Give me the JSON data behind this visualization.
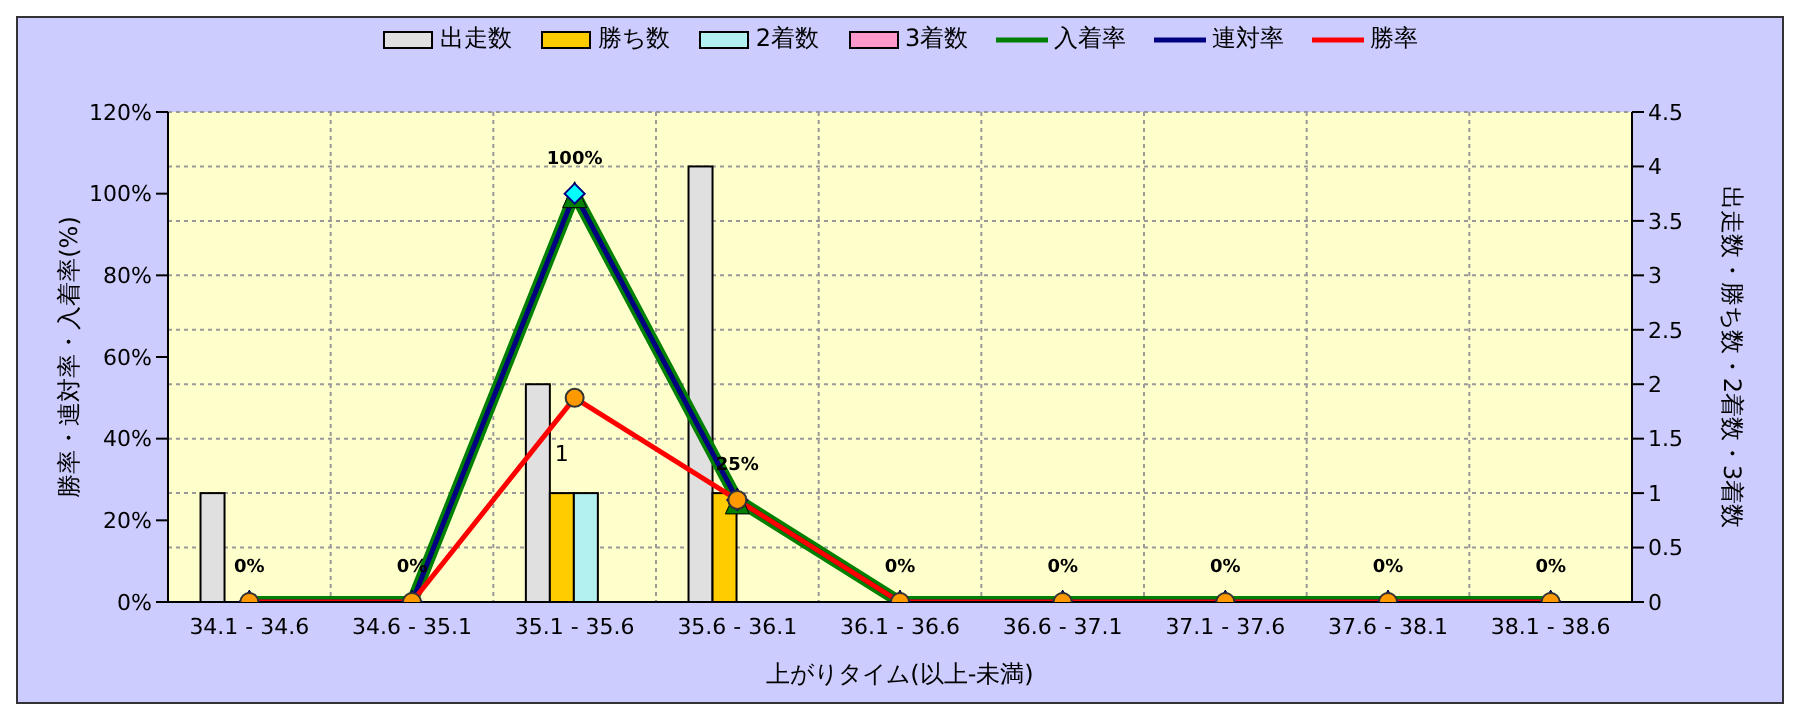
{
  "chart_data": {
    "type": "bar",
    "xlabel": "上がりタイム(以上-未満)",
    "ylabel": "勝率・連対率・入着率(%)",
    "y2label": "出走数・勝ち数・2着数・3着数",
    "categories": [
      "34.1 - 34.6",
      "34.6 - 35.1",
      "35.1 - 35.6",
      "35.6 - 36.1",
      "36.1 - 36.6",
      "36.6 - 37.1",
      "37.1 - 37.6",
      "37.6 - 38.1",
      "38.1 - 38.6"
    ],
    "series": [
      {
        "name": "出走数",
        "axis": "y2",
        "color": "#e0e0e0",
        "values": [
          1,
          0,
          2,
          4,
          0,
          0,
          0,
          0,
          0
        ]
      },
      {
        "name": "勝ち数",
        "axis": "y2",
        "color": "#ffcc00",
        "values": [
          0,
          0,
          1,
          1,
          0,
          0,
          0,
          0,
          0
        ],
        "value_labels": [
          null,
          null,
          "1",
          null,
          null,
          null,
          null,
          null,
          null
        ]
      },
      {
        "name": "2着数",
        "axis": "y2",
        "color": "#b3f0f0",
        "values": [
          0,
          0,
          1,
          0,
          0,
          0,
          0,
          0,
          0
        ]
      },
      {
        "name": "3着数",
        "axis": "y2",
        "color": "#ff99cc",
        "values": [
          0,
          0,
          0,
          0,
          0,
          0,
          0,
          0,
          0
        ]
      },
      {
        "name": "入着率",
        "type": "line",
        "color": "#008000",
        "marker": "triangle",
        "values": [
          0,
          0,
          100,
          25,
          0,
          0,
          0,
          0,
          0
        ]
      },
      {
        "name": "連対率",
        "type": "line",
        "color": "#000080",
        "marker": "diamond",
        "values": [
          0,
          0,
          100,
          25,
          0,
          0,
          0,
          0,
          0
        ],
        "value_labels": [
          "0%",
          "0%",
          "100%",
          "25%",
          "0%",
          "0%",
          "0%",
          "0%",
          "0%"
        ]
      },
      {
        "name": "勝率",
        "type": "line",
        "color": "#ff0000",
        "marker": "circle",
        "values": [
          0,
          0,
          50,
          25,
          0,
          0,
          0,
          0,
          0
        ]
      }
    ],
    "ylim": [
      0,
      120
    ],
    "yticks": [
      {
        "value": 0,
        "label": "0%"
      },
      {
        "value": 20,
        "label": "20%"
      },
      {
        "value": 40,
        "label": "40%"
      },
      {
        "value": 60,
        "label": "60%"
      },
      {
        "value": 80,
        "label": "80%"
      },
      {
        "value": 100,
        "label": "100%"
      },
      {
        "value": 120,
        "label": "120%"
      }
    ],
    "y2lim": [
      0,
      4.5
    ],
    "y2ticks": [
      0,
      0.5,
      1,
      1.5,
      2,
      2.5,
      3,
      3.5,
      4,
      4.5
    ],
    "grid": true,
    "legend": "top"
  }
}
